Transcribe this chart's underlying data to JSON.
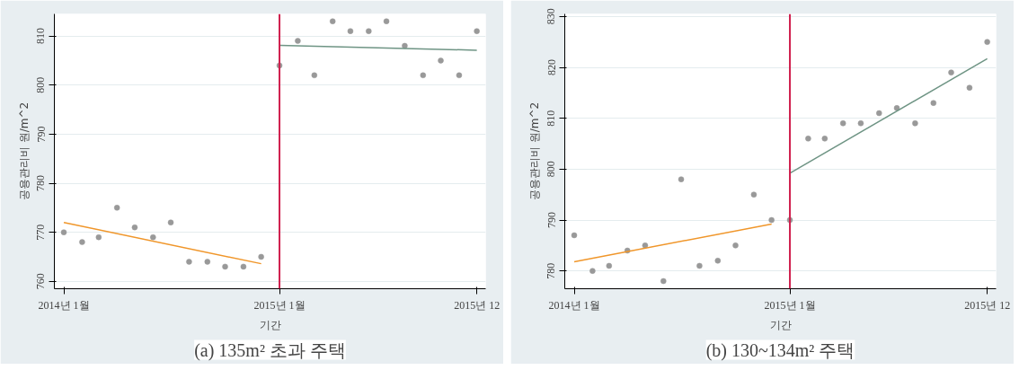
{
  "chart_data": [
    {
      "type": "scatter",
      "title": "(a) 135m² 초과 주택",
      "xlabel": "기간",
      "ylabel": "공용관리비 원/m^2",
      "x": [
        "2014-01",
        "2014-02",
        "2014-03",
        "2014-04",
        "2014-05",
        "2014-06",
        "2014-07",
        "2014-08",
        "2014-09",
        "2014-10",
        "2014-11",
        "2014-12",
        "2015-01",
        "2015-02",
        "2015-03",
        "2015-04",
        "2015-05",
        "2015-06",
        "2015-07",
        "2015-08",
        "2015-09",
        "2015-10",
        "2015-11",
        "2015-12"
      ],
      "series": [
        {
          "color": "#999999",
          "values": [
            770,
            768,
            769,
            775,
            771,
            769,
            772,
            764,
            764,
            763,
            763,
            765,
            804,
            809,
            802,
            813,
            811,
            811,
            813,
            808,
            802,
            805,
            802,
            811
          ]
        },
        {
          "type": "line",
          "marker": "none",
          "color": "#f0962a",
          "x": [
            "2014-01",
            "2014-12"
          ],
          "values": [
            772,
            763.6
          ]
        },
        {
          "type": "line",
          "marker": "none",
          "color": "#6e9484",
          "x": [
            "2015-01",
            "2015-12"
          ],
          "values": [
            808.1,
            807.1
          ]
        }
      ],
      "xlim": [
        "2013-12-16",
        "2015-12-16"
      ],
      "xticks": [
        {
          "value": "2014-01",
          "label": "2014년 1월"
        },
        {
          "value": "2015-01",
          "label": "2015년 1월"
        },
        {
          "value": "2015-12",
          "label": "2015년 12"
        }
      ],
      "ylim": [
        758.5,
        814.5
      ],
      "yticks": [
        760,
        770,
        780,
        790,
        800,
        810
      ],
      "ref_lines": [
        {
          "axis": "x",
          "value": "2015-01",
          "color": "#d0204e"
        }
      ],
      "grid": "y",
      "marker": "circle"
    },
    {
      "type": "scatter",
      "title": "(b) 130~134m² 주택",
      "xlabel": "기간",
      "ylabel": "공용관리비 원/m^2",
      "x": [
        "2014-01",
        "2014-02",
        "2014-03",
        "2014-04",
        "2014-05",
        "2014-06",
        "2014-07",
        "2014-08",
        "2014-09",
        "2014-10",
        "2014-11",
        "2014-12",
        "2015-01",
        "2015-02",
        "2015-03",
        "2015-04",
        "2015-05",
        "2015-06",
        "2015-07",
        "2015-08",
        "2015-09",
        "2015-10",
        "2015-11",
        "2015-12"
      ],
      "series": [
        {
          "color": "#999999",
          "values": [
            787,
            780,
            781,
            784,
            785,
            778,
            798,
            781,
            782,
            785,
            795,
            790,
            790,
            806,
            806,
            809,
            809,
            811,
            812,
            809,
            813,
            819,
            816,
            825
          ]
        },
        {
          "type": "line",
          "marker": "none",
          "color": "#f0962a",
          "x": [
            "2014-01",
            "2014-12"
          ],
          "values": [
            781.8,
            789.2
          ]
        },
        {
          "type": "line",
          "marker": "none",
          "color": "#6e9484",
          "x": [
            "2015-01",
            "2015-12"
          ],
          "values": [
            799.2,
            821.7
          ]
        }
      ],
      "xlim": [
        "2013-12-16",
        "2015-12-16"
      ],
      "xticks": [
        {
          "value": "2014-01",
          "label": "2014년 1월"
        },
        {
          "value": "2015-01",
          "label": "2015년 1월"
        },
        {
          "value": "2015-12",
          "label": "2015년 12"
        }
      ],
      "ylim": [
        776.5,
        830.5
      ],
      "yticks": [
        780,
        790,
        800,
        810,
        820,
        830
      ],
      "ref_lines": [
        {
          "axis": "x",
          "value": "2015-01",
          "color": "#d0204e"
        }
      ],
      "grid": "y",
      "marker": "circle"
    }
  ]
}
